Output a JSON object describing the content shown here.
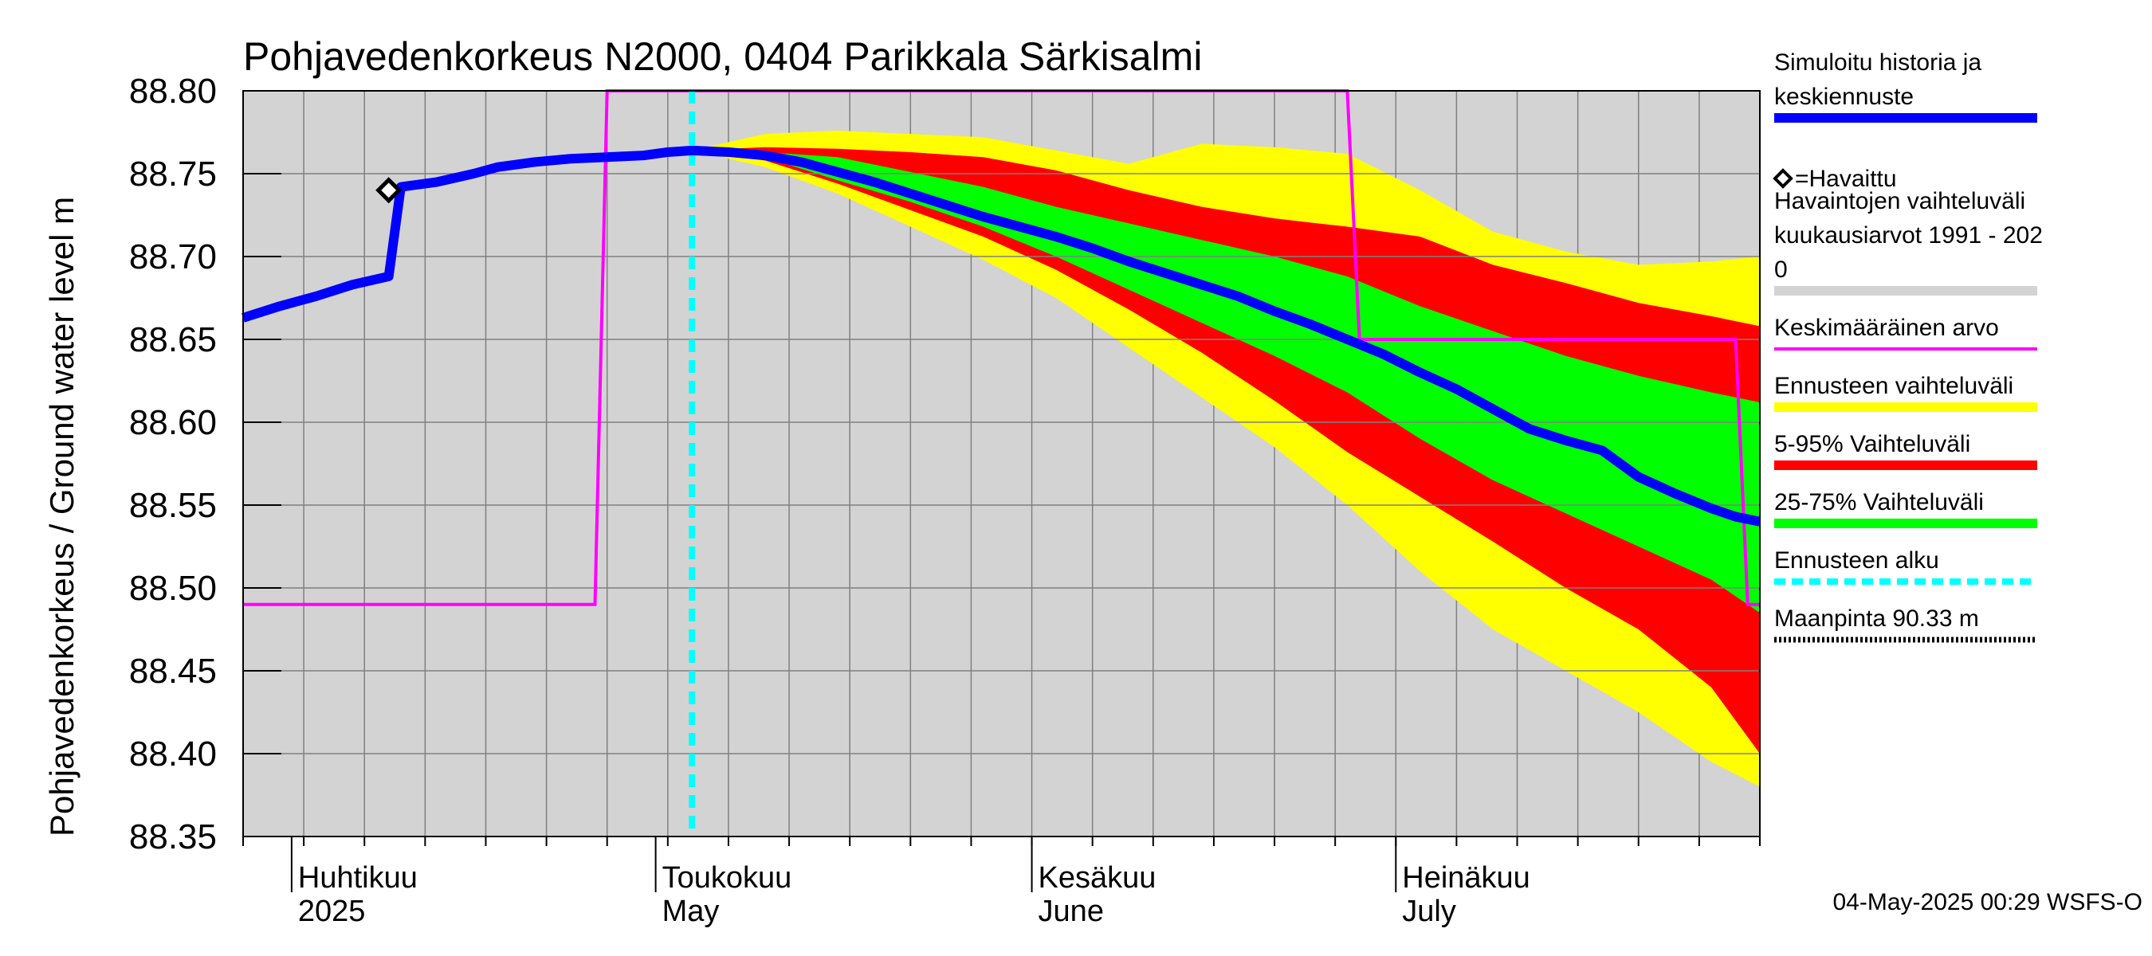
{
  "chart_data": {
    "type": "area",
    "title": "Pohjavedenkorkeus N2000, 0404 Parikkala Särkisalmi",
    "ylabel": "Pohjavedenkorkeus / Ground water level   m",
    "ylim": [
      88.35,
      88.8
    ],
    "yticks": [
      "88.80",
      "88.75",
      "88.70",
      "88.65",
      "88.60",
      "88.55",
      "88.50",
      "88.45",
      "88.40",
      "88.35"
    ],
    "x_range_days": [
      "2025-03-28",
      "2025-07-31"
    ],
    "x_month_labels": [
      {
        "date": "2025-04-01",
        "fi": "Huhtikuu",
        "en": "2025"
      },
      {
        "date": "2025-05-01",
        "fi": "Toukokuu",
        "en": "May"
      },
      {
        "date": "2025-06-01",
        "fi": "Kesäkuu",
        "en": "June"
      },
      {
        "date": "2025-07-01",
        "fi": "Heinäkuu",
        "en": "July"
      }
    ],
    "grid": true,
    "legend_position": "right",
    "background_range_color": "#d3d3d3",
    "forecast_start": "2025-05-04",
    "observed": [
      {
        "date": "2025-04-09",
        "value": 88.74
      }
    ],
    "series": [
      {
        "name": "Simuloitu historia ja keskiennuste",
        "color": "#0000ff",
        "points": [
          [
            "2025-03-28",
            88.663
          ],
          [
            "2025-03-31",
            88.67
          ],
          [
            "2025-04-03",
            88.676
          ],
          [
            "2025-04-06",
            88.683
          ],
          [
            "2025-04-09",
            88.688
          ],
          [
            "2025-04-10",
            88.742
          ],
          [
            "2025-04-13",
            88.745
          ],
          [
            "2025-04-16",
            88.75
          ],
          [
            "2025-04-18",
            88.754
          ],
          [
            "2025-04-21",
            88.757
          ],
          [
            "2025-04-24",
            88.759
          ],
          [
            "2025-04-27",
            88.76
          ],
          [
            "2025-04-30",
            88.761
          ],
          [
            "2025-05-02",
            88.763
          ],
          [
            "2025-05-04",
            88.764
          ],
          [
            "2025-05-07",
            88.763
          ],
          [
            "2025-05-10",
            88.761
          ],
          [
            "2025-05-13",
            88.757
          ],
          [
            "2025-05-16",
            88.751
          ],
          [
            "2025-05-19",
            88.745
          ],
          [
            "2025-05-22",
            88.738
          ],
          [
            "2025-05-25",
            88.731
          ],
          [
            "2025-05-28",
            88.724
          ],
          [
            "2025-05-31",
            88.718
          ],
          [
            "2025-06-03",
            88.712
          ],
          [
            "2025-06-06",
            88.705
          ],
          [
            "2025-06-09",
            88.697
          ],
          [
            "2025-06-12",
            88.69
          ],
          [
            "2025-06-15",
            88.683
          ],
          [
            "2025-06-18",
            88.676
          ],
          [
            "2025-06-21",
            88.667
          ],
          [
            "2025-06-24",
            88.659
          ],
          [
            "2025-06-27",
            88.65
          ],
          [
            "2025-06-30",
            88.641
          ],
          [
            "2025-07-03",
            88.63
          ],
          [
            "2025-07-06",
            88.62
          ],
          [
            "2025-07-09",
            88.608
          ],
          [
            "2025-07-12",
            88.596
          ],
          [
            "2025-07-15",
            88.589
          ],
          [
            "2025-07-18",
            88.583
          ],
          [
            "2025-07-21",
            88.567
          ],
          [
            "2025-07-24",
            88.557
          ],
          [
            "2025-07-27",
            88.548
          ],
          [
            "2025-07-29",
            88.543
          ],
          [
            "2025-07-31",
            88.54
          ]
        ]
      },
      {
        "name": "Keskimääräinen arvo",
        "color": "#ff00ff",
        "points": [
          [
            "2025-03-28",
            88.49
          ],
          [
            "2025-04-26",
            88.49
          ],
          [
            "2025-04-27",
            88.8
          ],
          [
            "2025-05-28",
            88.8
          ],
          [
            "2025-06-27",
            88.8
          ],
          [
            "2025-06-28",
            88.65
          ],
          [
            "2025-07-29",
            88.65
          ],
          [
            "2025-07-30",
            88.49
          ],
          [
            "2025-07-31",
            88.49
          ]
        ]
      }
    ],
    "bands": [
      {
        "name": "Ennusteen vaihteluväli",
        "color": "#ffff00",
        "dates": [
          "2025-05-04",
          "2025-05-10",
          "2025-05-16",
          "2025-05-22",
          "2025-05-28",
          "2025-06-03",
          "2025-06-09",
          "2025-06-15",
          "2025-06-21",
          "2025-06-27",
          "2025-07-03",
          "2025-07-09",
          "2025-07-15",
          "2025-07-21",
          "2025-07-27",
          "2025-07-31"
        ],
        "upper": [
          88.764,
          88.774,
          88.776,
          88.774,
          88.772,
          88.764,
          88.756,
          88.768,
          88.766,
          88.762,
          88.74,
          88.715,
          88.703,
          88.695,
          88.697,
          88.7
        ],
        "lower": [
          88.764,
          88.754,
          88.738,
          88.718,
          88.698,
          88.675,
          88.645,
          88.615,
          88.585,
          88.55,
          88.51,
          88.475,
          88.45,
          88.425,
          88.395,
          88.38
        ]
      },
      {
        "name": "5-95% Vaihteluväli",
        "color": "#ff0000",
        "dates": [
          "2025-05-04",
          "2025-05-10",
          "2025-05-16",
          "2025-05-22",
          "2025-05-28",
          "2025-06-03",
          "2025-06-09",
          "2025-06-15",
          "2025-06-21",
          "2025-06-27",
          "2025-07-03",
          "2025-07-09",
          "2025-07-15",
          "2025-07-21",
          "2025-07-27",
          "2025-07-31"
        ],
        "upper": [
          88.764,
          88.766,
          88.765,
          88.763,
          88.76,
          88.752,
          88.74,
          88.73,
          88.723,
          88.718,
          88.712,
          88.695,
          88.684,
          88.672,
          88.664,
          88.658
        ],
        "lower": [
          88.764,
          88.758,
          88.744,
          88.728,
          88.712,
          88.692,
          88.668,
          88.642,
          88.613,
          88.582,
          88.555,
          88.528,
          88.5,
          88.475,
          88.44,
          88.4
        ]
      },
      {
        "name": "25-75% Vaihteluväli",
        "color": "#00ff00",
        "dates": [
          "2025-05-04",
          "2025-05-10",
          "2025-05-16",
          "2025-05-22",
          "2025-05-28",
          "2025-06-03",
          "2025-06-09",
          "2025-06-15",
          "2025-06-21",
          "2025-06-27",
          "2025-07-03",
          "2025-07-09",
          "2025-07-15",
          "2025-07-21",
          "2025-07-27",
          "2025-07-31"
        ],
        "upper": [
          88.764,
          88.763,
          88.76,
          88.751,
          88.742,
          88.73,
          88.72,
          88.71,
          88.7,
          88.688,
          88.67,
          88.655,
          88.64,
          88.628,
          88.618,
          88.612
        ],
        "lower": [
          88.764,
          88.76,
          88.746,
          88.733,
          88.718,
          88.7,
          88.68,
          88.66,
          88.64,
          88.618,
          88.59,
          88.565,
          88.545,
          88.525,
          88.505,
          88.485
        ]
      }
    ],
    "legend": [
      {
        "lines": [
          "Simuloitu historia ja",
          "keskiennuste"
        ],
        "color": "#0000ff",
        "style": "thick"
      },
      {
        "lines": [
          "◇=Havaittu"
        ],
        "color": "",
        "style": "none"
      },
      {
        "lines": [
          "Havaintojen vaihteluväli",
          " kuukausiarvot 1991 - 202",
          "0"
        ],
        "color": "#d3d3d3",
        "style": "thick"
      },
      {
        "lines": [
          "Keskimääräinen arvo"
        ],
        "color": "#ff00ff",
        "style": "thin"
      },
      {
        "lines": [
          "Ennusteen vaihteluväli"
        ],
        "color": "#ffff00",
        "style": "thick"
      },
      {
        "lines": [
          "5-95% Vaihteluväli"
        ],
        "color": "#ff0000",
        "style": "thick"
      },
      {
        "lines": [
          "25-75% Vaihteluväli"
        ],
        "color": "#00ff00",
        "style": "thick"
      },
      {
        "lines": [
          "Ennusteen alku"
        ],
        "color": "#00ffff",
        "style": "dashed"
      },
      {
        "lines": [
          "Maanpinta 90.33 m"
        ],
        "color": "#000000",
        "style": "dotted"
      }
    ],
    "timestamp": "04-May-2025 00:29 WSFS-O"
  }
}
